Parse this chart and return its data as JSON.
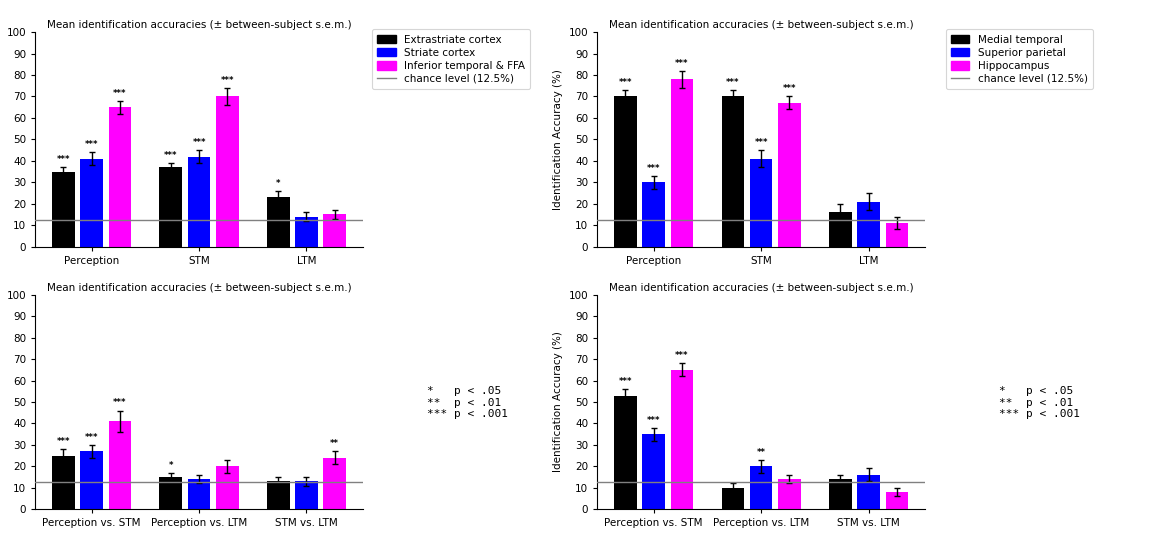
{
  "title": "Mean identification accuracies (± between-subject s.e.m.)",
  "ylabel": "Identification Accuracy (%)",
  "chance_level": 12.5,
  "ylim": [
    0,
    100
  ],
  "yticks": [
    0,
    10,
    20,
    30,
    40,
    50,
    60,
    70,
    80,
    90,
    100
  ],
  "plot1": {
    "title": "Mean identification accuracies (± between-subject s.e.m.)",
    "groups": [
      "Perception",
      "STM",
      "LTM"
    ],
    "series": [
      "Extrastriate cortex",
      "Striate cortex",
      "Inferior temporal & FFA"
    ],
    "colors": [
      "#000000",
      "#0000ff",
      "#ff00ff"
    ],
    "values": [
      [
        35,
        41,
        65
      ],
      [
        37,
        42,
        70
      ],
      [
        23,
        14,
        15
      ]
    ],
    "errors": [
      [
        2,
        3,
        3
      ],
      [
        2,
        3,
        4
      ],
      [
        3,
        2,
        2
      ]
    ],
    "stars": [
      [
        "***",
        "***",
        "***"
      ],
      [
        "***",
        "***",
        "***"
      ],
      [
        "*",
        "",
        ""
      ]
    ]
  },
  "plot2": {
    "title": "Mean identification accuracies (± between-subject s.e.m.)",
    "groups": [
      "Perception",
      "STM",
      "LTM"
    ],
    "series": [
      "Medial temporal",
      "Superior parietal",
      "Hippocampus"
    ],
    "colors": [
      "#000000",
      "#0000ff",
      "#ff00ff"
    ],
    "values": [
      [
        70,
        30,
        78
      ],
      [
        70,
        41,
        67
      ],
      [
        16,
        21,
        11
      ]
    ],
    "errors": [
      [
        3,
        3,
        4
      ],
      [
        3,
        4,
        3
      ],
      [
        4,
        4,
        3
      ]
    ],
    "stars": [
      [
        "***",
        "***",
        "***"
      ],
      [
        "***",
        "***",
        "***"
      ],
      [
        "",
        "",
        ""
      ]
    ]
  },
  "plot3": {
    "title": "Mean identification accuracies (± between-subject s.e.m.)",
    "groups": [
      "Perception vs. STM",
      "Perception vs. LTM",
      "STM vs. LTM"
    ],
    "series": [
      "Extrastriate cortex",
      "Striate cortex",
      "Inferior temporal & FFA"
    ],
    "colors": [
      "#000000",
      "#0000ff",
      "#ff00ff"
    ],
    "values": [
      [
        25,
        27,
        41
      ],
      [
        15,
        14,
        20
      ],
      [
        13,
        13,
        24
      ]
    ],
    "errors": [
      [
        3,
        3,
        5
      ],
      [
        2,
        2,
        3
      ],
      [
        2,
        2,
        3
      ]
    ],
    "stars": [
      [
        "***",
        "***",
        "***"
      ],
      [
        "*",
        "",
        ""
      ],
      [
        "",
        "",
        "**"
      ]
    ]
  },
  "plot4": {
    "title": "Mean identification accuracies (± between-subject s.e.m.)",
    "groups": [
      "Perception vs. STM",
      "Perception vs. LTM",
      "STM vs. LTM"
    ],
    "series": [
      "Medial temporal",
      "Superior parietal",
      "Hippocampus"
    ],
    "colors": [
      "#000000",
      "#0000ff",
      "#ff00ff"
    ],
    "values": [
      [
        53,
        35,
        65
      ],
      [
        10,
        20,
        14
      ],
      [
        14,
        16,
        8
      ]
    ],
    "errors": [
      [
        3,
        3,
        3
      ],
      [
        2,
        3,
        2
      ],
      [
        2,
        3,
        2
      ]
    ],
    "stars": [
      [
        "***",
        "***",
        "***"
      ],
      [
        "",
        "**",
        ""
      ],
      [
        "",
        "",
        ""
      ]
    ]
  },
  "legend1": {
    "series": [
      "Extrastriate cortex",
      "Striate cortex",
      "Inferior temporal & FFA"
    ],
    "colors": [
      "#000000",
      "#0000ff",
      "#ff00ff"
    ]
  },
  "legend2": {
    "series": [
      "Medial temporal",
      "Superior parietal",
      "Hippocampus"
    ],
    "colors": [
      "#000000",
      "#0000ff",
      "#ff00ff"
    ]
  },
  "pvalue_text_lines": [
    "*   p < .05",
    "**  p < .01",
    "*** p < .001"
  ],
  "chance_color": "#808080",
  "background_color": "#ffffff"
}
